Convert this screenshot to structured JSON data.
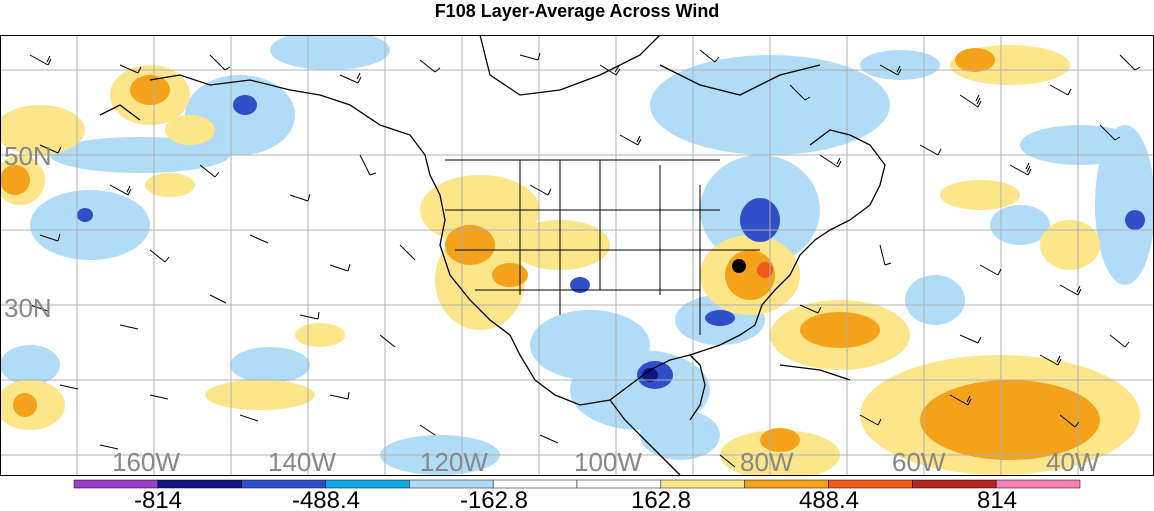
{
  "title": "F108 Layer-Average Across Wind",
  "lat_labels": [
    {
      "label": "50N",
      "lat": 50
    },
    {
      "label": "30N",
      "lat": 30
    }
  ],
  "lon_labels": [
    {
      "label": "160W",
      "lon": -160
    },
    {
      "label": "140W",
      "lon": -140
    },
    {
      "label": "120W",
      "lon": -120
    },
    {
      "label": "100W",
      "lon": -100
    },
    {
      "label": "80W",
      "lon": -80
    },
    {
      "label": "60W",
      "lon": -60
    },
    {
      "label": "40W",
      "lon": -40
    }
  ],
  "colorbar": {
    "colors": [
      "#9b3fc6",
      "#101580",
      "#2f4fc8",
      "#12a9e6",
      "#b0dcf7",
      "#ffffff",
      "#ffffff",
      "#fde58a",
      "#f4a219",
      "#f05a1a",
      "#b5261f",
      "#f282b4"
    ],
    "labels": [
      "-814",
      "-488.4",
      "-162.8",
      "162.8",
      "488.4",
      "814"
    ]
  },
  "marker": {
    "name": "station-marker",
    "lon": -78,
    "lat": 36
  }
}
